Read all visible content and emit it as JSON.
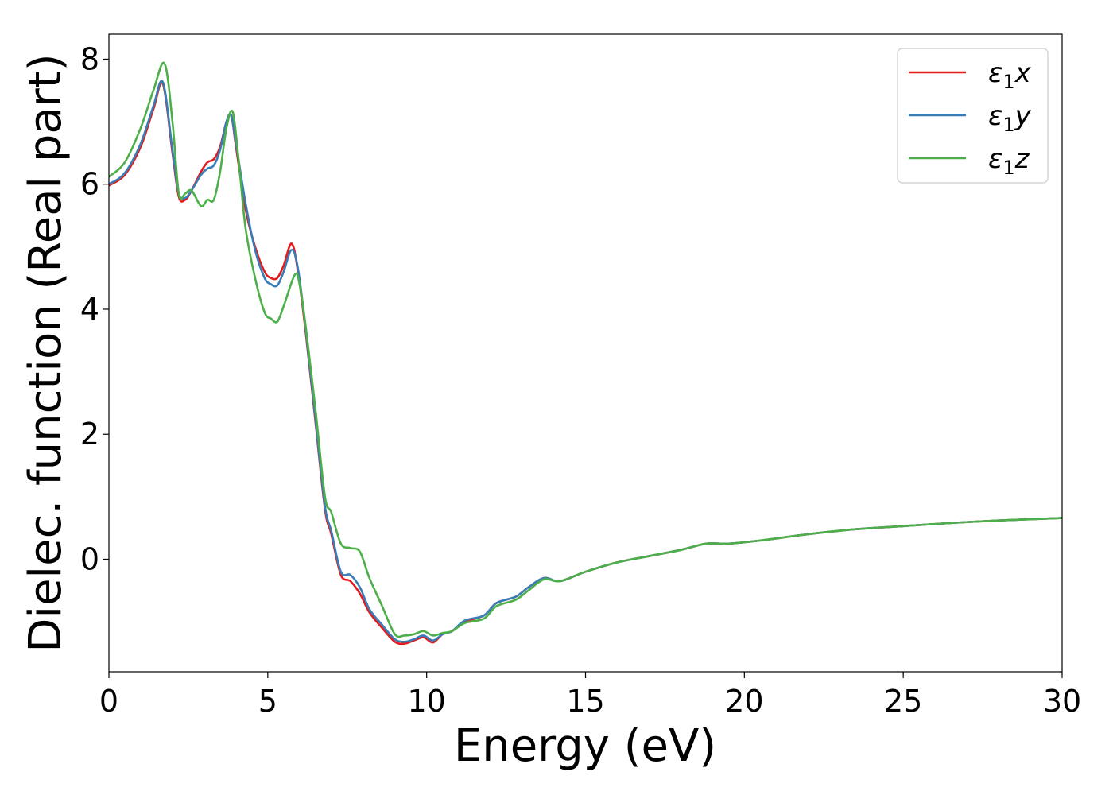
{
  "chart_data": {
    "type": "line",
    "title": "",
    "xlabel": "Energy (eV)",
    "ylabel": "Dielec. function (Real part)",
    "xlim": [
      0,
      30
    ],
    "ylim": [
      -1.8,
      8.4
    ],
    "xticks": [
      0,
      5,
      10,
      15,
      20,
      25,
      30
    ],
    "yticks": [
      0,
      2,
      4,
      6,
      8
    ],
    "grid": false,
    "legend_position": "top-right",
    "series": [
      {
        "name": "ε₁x",
        "legend_main": "ε",
        "legend_sub": "1",
        "legend_var": "x",
        "color": "#e41a1c",
        "x": [
          0,
          0.5,
          1.0,
          1.4,
          1.7,
          2.0,
          2.2,
          2.4,
          2.6,
          2.9,
          3.1,
          3.3,
          3.5,
          3.7,
          3.85,
          4.0,
          4.3,
          4.6,
          4.9,
          5.1,
          5.3,
          5.5,
          5.75,
          5.95,
          6.2,
          6.5,
          6.8,
          7.0,
          7.3,
          7.6,
          7.9,
          8.2,
          8.6,
          9.0,
          9.3,
          9.6,
          9.9,
          10.2,
          10.5,
          10.8,
          11.2,
          11.8,
          12.2,
          12.8,
          13.2,
          13.7,
          14.2,
          15.0,
          16.0,
          17.0,
          18.0,
          18.8,
          19.5,
          20.5,
          22.0,
          23.5,
          25.0,
          26.5,
          28.0,
          30.0
        ],
        "values": [
          5.98,
          6.15,
          6.6,
          7.2,
          7.6,
          6.5,
          5.8,
          5.75,
          5.9,
          6.2,
          6.35,
          6.4,
          6.6,
          7.0,
          7.1,
          6.6,
          5.6,
          5.0,
          4.6,
          4.5,
          4.5,
          4.7,
          5.05,
          4.6,
          3.6,
          2.2,
          0.8,
          0.4,
          -0.25,
          -0.35,
          -0.55,
          -0.85,
          -1.1,
          -1.32,
          -1.35,
          -1.3,
          -1.25,
          -1.33,
          -1.2,
          -1.15,
          -1.0,
          -0.9,
          -0.7,
          -0.6,
          -0.45,
          -0.3,
          -0.35,
          -0.2,
          -0.05,
          0.05,
          0.15,
          0.25,
          0.25,
          0.3,
          0.4,
          0.48,
          0.53,
          0.58,
          0.62,
          0.66
        ]
      },
      {
        "name": "ε₁y",
        "legend_main": "ε",
        "legend_sub": "1",
        "legend_var": "y",
        "color": "#377eb8",
        "x": [
          0,
          0.5,
          1.0,
          1.4,
          1.7,
          2.0,
          2.2,
          2.4,
          2.6,
          2.9,
          3.1,
          3.3,
          3.5,
          3.7,
          3.85,
          4.0,
          4.3,
          4.6,
          4.9,
          5.1,
          5.3,
          5.5,
          5.75,
          5.95,
          6.2,
          6.5,
          6.8,
          7.0,
          7.3,
          7.6,
          7.9,
          8.2,
          8.6,
          9.0,
          9.3,
          9.6,
          9.9,
          10.2,
          10.5,
          10.8,
          11.2,
          11.8,
          12.2,
          12.8,
          13.2,
          13.7,
          14.2,
          15.0,
          16.0,
          17.0,
          18.0,
          18.8,
          19.5,
          20.5,
          22.0,
          23.5,
          25.0,
          26.5,
          28.0,
          30.0
        ],
        "values": [
          6.0,
          6.18,
          6.65,
          7.25,
          7.63,
          6.55,
          5.85,
          5.78,
          5.9,
          6.15,
          6.25,
          6.3,
          6.55,
          7.0,
          7.1,
          6.65,
          5.7,
          4.95,
          4.5,
          4.4,
          4.38,
          4.6,
          4.95,
          4.65,
          3.65,
          2.25,
          0.85,
          0.45,
          -0.2,
          -0.25,
          -0.45,
          -0.8,
          -1.05,
          -1.28,
          -1.32,
          -1.28,
          -1.22,
          -1.3,
          -1.2,
          -1.15,
          -0.98,
          -0.9,
          -0.7,
          -0.6,
          -0.45,
          -0.3,
          -0.35,
          -0.2,
          -0.05,
          0.05,
          0.15,
          0.25,
          0.25,
          0.3,
          0.4,
          0.48,
          0.53,
          0.58,
          0.62,
          0.66
        ]
      },
      {
        "name": "ε₁z",
        "legend_main": "ε",
        "legend_sub": "1",
        "legend_var": "z",
        "color": "#4daf4a",
        "x": [
          0,
          0.5,
          1.0,
          1.4,
          1.75,
          2.0,
          2.2,
          2.4,
          2.6,
          2.9,
          3.1,
          3.3,
          3.5,
          3.7,
          3.9,
          4.1,
          4.3,
          4.6,
          4.9,
          5.1,
          5.3,
          5.5,
          5.85,
          6.0,
          6.2,
          6.5,
          6.8,
          7.0,
          7.3,
          7.6,
          7.9,
          8.2,
          8.6,
          9.0,
          9.3,
          9.6,
          9.9,
          10.2,
          10.5,
          10.8,
          11.2,
          11.8,
          12.2,
          12.8,
          13.2,
          13.7,
          14.2,
          15.0,
          16.0,
          17.0,
          18.0,
          18.8,
          19.5,
          20.5,
          22.0,
          23.5,
          25.0,
          26.5,
          28.0,
          30.0
        ],
        "values": [
          6.12,
          6.35,
          6.9,
          7.5,
          7.93,
          7.0,
          5.85,
          5.85,
          5.9,
          5.65,
          5.75,
          5.75,
          6.2,
          6.9,
          7.15,
          6.3,
          5.3,
          4.5,
          3.95,
          3.85,
          3.8,
          4.05,
          4.55,
          4.4,
          3.7,
          2.4,
          1.0,
          0.75,
          0.25,
          0.18,
          0.12,
          -0.3,
          -0.75,
          -1.2,
          -1.22,
          -1.2,
          -1.15,
          -1.22,
          -1.18,
          -1.15,
          -1.02,
          -0.95,
          -0.75,
          -0.65,
          -0.5,
          -0.32,
          -0.35,
          -0.2,
          -0.05,
          0.05,
          0.15,
          0.25,
          0.25,
          0.3,
          0.4,
          0.48,
          0.53,
          0.58,
          0.62,
          0.66
        ]
      }
    ]
  }
}
